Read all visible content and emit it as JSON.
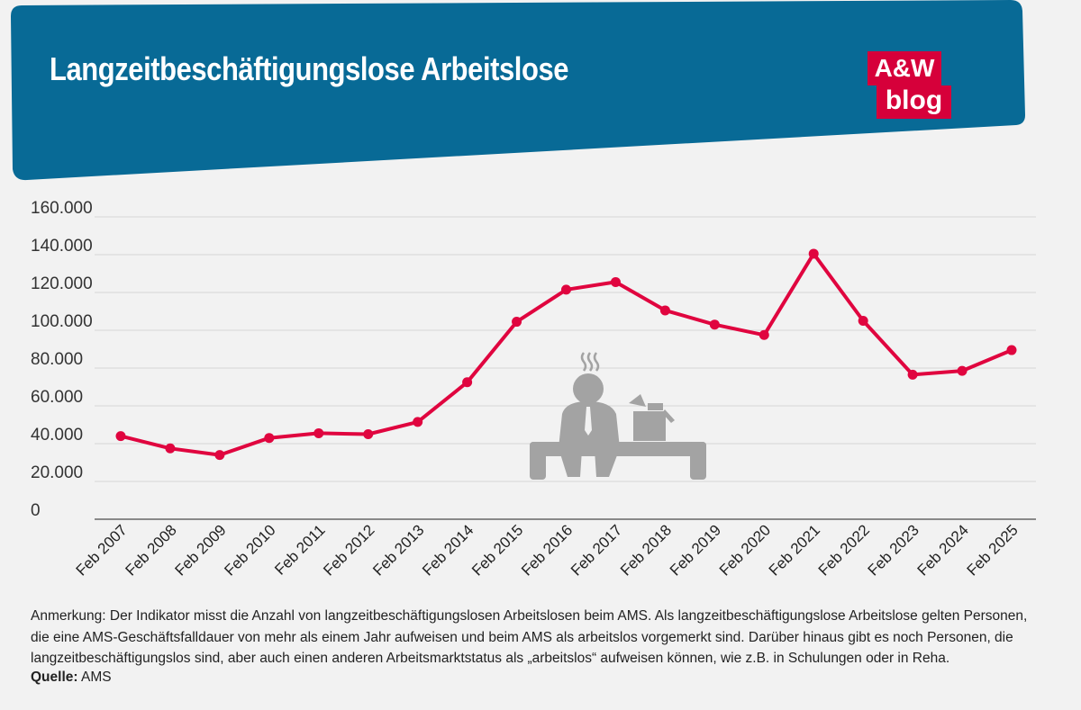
{
  "header": {
    "title": "Langzeitbeschäftigungslose Arbeitslose",
    "logo_line1": "A&W",
    "logo_line2": "blog",
    "banner_color": "#086a96",
    "logo_color": "#d6003a"
  },
  "chart_data": {
    "type": "line",
    "title": "",
    "xlabel": "",
    "ylabel": "",
    "ylim": [
      0,
      160000
    ],
    "yticks": [
      {
        "value": 0,
        "label": "0"
      },
      {
        "value": 20000,
        "label": "20.000"
      },
      {
        "value": 40000,
        "label": "40.000"
      },
      {
        "value": 60000,
        "label": "60.000"
      },
      {
        "value": 80000,
        "label": "80.000"
      },
      {
        "value": 100000,
        "label": "100.000"
      },
      {
        "value": 120000,
        "label": "120.000"
      },
      {
        "value": 140000,
        "label": "140.000"
      },
      {
        "value": 160000,
        "label": "160.000"
      }
    ],
    "grid": true,
    "legend": "none",
    "categories": [
      "Feb 2007",
      "Feb 2008",
      "Feb 2009",
      "Feb 2010",
      "Feb 2011",
      "Feb 2012",
      "Feb 2013",
      "Feb 2014",
      "Feb 2015",
      "Feb 2016",
      "Feb 2017",
      "Feb 2018",
      "Feb 2019",
      "Feb 2020",
      "Feb 2021",
      "Feb 2022",
      "Feb 2023",
      "Feb 2024",
      "Feb 2025"
    ],
    "series": [
      {
        "color": "#e0053f",
        "values": [
          44000,
          37500,
          34000,
          43000,
          45500,
          45000,
          51500,
          72500,
          104500,
          121500,
          125500,
          110500,
          103000,
          97500,
          140500,
          105000,
          76500,
          78500,
          89500
        ]
      }
    ]
  },
  "footer": {
    "note_lines": [
      "Anmerkung: Der Indikator misst die Anzahl von langzeitbeschäftigungslosen Arbeitslosen beim AMS. Als langzeitbeschäftigungslose Arbeitslose gelten Personen,",
      "die eine AMS-Geschäftsfalldauer von mehr als einem Jahr aufweisen und beim AMS als arbeitslos vorgemerkt sind. Darüber hinaus gibt es noch Personen, die",
      "langzeitbeschäftigungslos sind, aber auch einen anderen Arbeitsmarktstatus als „arbeitslos“ aufweisen können, wie z.B. in Schulungen oder in Reha."
    ],
    "source_label": "Quelle:",
    "source_value": "AMS"
  },
  "illustration": {
    "icon": "unemployed-person-on-bench-icon",
    "color": "#a3a3a3"
  }
}
